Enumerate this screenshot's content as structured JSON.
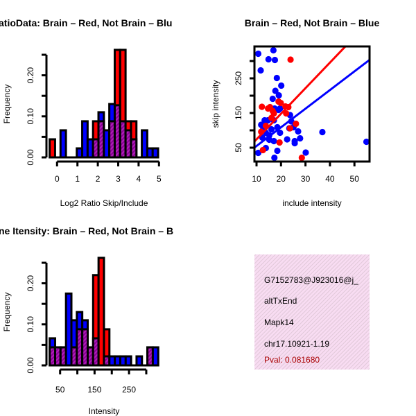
{
  "colors": {
    "red": "#ff0000",
    "blue": "#0000ff",
    "purple": "#9a00a8",
    "info_bg": "#f6d8f0",
    "pval": "#aa0000"
  },
  "chart_data": [
    {
      "type": "bar",
      "id": "ratio-hist",
      "title": "atioData: Brain – Red, Not Brain – Blu",
      "xlabel": "Log2 Ratio Skip/Include",
      "ylabel": "Frequency",
      "xticks": [
        0,
        1,
        2,
        3,
        4,
        5
      ],
      "xtick_labels": [
        "0",
        "1",
        "2",
        "3",
        "4",
        "5"
      ],
      "yticks": [
        0,
        0.05,
        0.1,
        0.15,
        0.2,
        0.25
      ],
      "ytick_labels": [
        "0.00",
        "",
        "0.10",
        "",
        "0.20",
        ""
      ],
      "bin_start": -0.363,
      "bin_width": 0.266,
      "series": [
        {
          "name": "Brain",
          "color": "red",
          "values": [
            0.044,
            0,
            0,
            0,
            0,
            0,
            0,
            0,
            0.088,
            0.088,
            0,
            0.088,
            0.262,
            0.262,
            0.088,
            0.088,
            0,
            0,
            0,
            0
          ]
        },
        {
          "name": "Not Brain",
          "color": "blue",
          "values": [
            0,
            0,
            0.066,
            0,
            0,
            0.022,
            0.088,
            0.044,
            0.044,
            0.11,
            0.066,
            0.13,
            0.127,
            0.088,
            0.066,
            0.044,
            0,
            0.066,
            0.022,
            0.022
          ]
        }
      ]
    },
    {
      "type": "scatter",
      "id": "scatter",
      "title": "Brain – Red, Not Brain – Blue",
      "xlabel": "include intensity",
      "ylabel": "skip intensity",
      "xlim": [
        8.9,
        56.2
      ],
      "ylim": [
        10,
        342
      ],
      "xticks": [
        10,
        20,
        30,
        40,
        50
      ],
      "xtick_labels": [
        "10",
        "20",
        "30",
        "40",
        "50"
      ],
      "yticks": [
        50,
        100,
        150,
        200,
        250,
        300
      ],
      "ytick_labels": [
        "50",
        "",
        "150",
        "",
        "250",
        ""
      ],
      "series": [
        {
          "name": "Not Brain",
          "color": "blue",
          "points": [
            [
              10.7,
              321
            ],
            [
              16.9,
              331
            ],
            [
              14.9,
              305
            ],
            [
              17.5,
              303
            ],
            [
              11.7,
              273
            ],
            [
              18.3,
              251
            ],
            [
              20.1,
              229
            ],
            [
              17.7,
              214
            ],
            [
              19.1,
              201
            ],
            [
              16.6,
              191
            ],
            [
              17.4,
              163
            ],
            [
              19.0,
              159
            ],
            [
              19.6,
              163
            ],
            [
              23.7,
              144
            ],
            [
              24.2,
              126
            ],
            [
              25.1,
              109
            ],
            [
              23.4,
              106
            ],
            [
              27.0,
              97
            ],
            [
              27.8,
              77
            ],
            [
              25.6,
              69
            ],
            [
              25.6,
              63
            ],
            [
              22.5,
              74
            ],
            [
              19.6,
              93
            ],
            [
              18.5,
              109
            ],
            [
              17.1,
              129
            ],
            [
              14.7,
              129
            ],
            [
              13.3,
              129
            ],
            [
              11.9,
              116
            ],
            [
              12.8,
              106
            ],
            [
              13.8,
              93
            ],
            [
              12.4,
              79
            ],
            [
              15.2,
              73
            ],
            [
              17.1,
              69
            ],
            [
              13.8,
              49
            ],
            [
              18.5,
              41
            ],
            [
              17.3,
              21
            ],
            [
              10.7,
              35
            ],
            [
              30.1,
              36
            ],
            [
              36.9,
              95
            ],
            [
              54.9,
              67
            ],
            [
              16.1,
              103
            ],
            [
              15.2,
              86
            ]
          ],
          "fit": {
            "intercept": 1.1,
            "slope": 5.38
          }
        },
        {
          "name": "Brain",
          "color": "red",
          "points": [
            [
              23.9,
              304
            ],
            [
              12.2,
              168
            ],
            [
              15.5,
              167
            ],
            [
              14.7,
              163
            ],
            [
              16.6,
              156
            ],
            [
              19.0,
              183
            ],
            [
              19.9,
              179
            ],
            [
              21.8,
              169
            ],
            [
              23.0,
              167
            ],
            [
              22.1,
              149
            ],
            [
              17.1,
              149
            ],
            [
              16.1,
              136
            ],
            [
              26.1,
              119
            ],
            [
              23.7,
              106
            ],
            [
              11.9,
              96
            ],
            [
              19.4,
              65
            ],
            [
              12.6,
              43
            ],
            [
              28.5,
              21
            ],
            [
              13.8,
              113
            ]
          ],
          "fit": {
            "intercept": 0.3,
            "slope": 7.38
          }
        }
      ]
    },
    {
      "type": "bar",
      "id": "intensity-hist",
      "title": "ne Itensity: Brain – Red, Not Brain – B",
      "xlabel": "Intensity",
      "ylabel": "Frequency",
      "xticks": [
        50,
        100,
        150,
        200,
        250,
        300
      ],
      "xtick_labels": [
        "50",
        "",
        "150",
        "",
        "250",
        ""
      ],
      "yticks": [
        0,
        0.05,
        0.1,
        0.15,
        0.2,
        0.25
      ],
      "ytick_labels": [
        "0.00",
        "",
        "0.10",
        "",
        "0.20",
        ""
      ],
      "bin_start": 19.8,
      "bin_width": 15.75,
      "series": [
        {
          "name": "Brain",
          "color": "red",
          "values": [
            0.044,
            0.044,
            0.044,
            0,
            0.044,
            0.088,
            0.088,
            0.044,
            0.22,
            0.262,
            0.088,
            0,
            0,
            0,
            0,
            0,
            0,
            0,
            0.044,
            0
          ]
        },
        {
          "name": "Not Brain",
          "color": "blue",
          "values": [
            0.066,
            0.044,
            0.044,
            0.175,
            0.11,
            0.13,
            0.11,
            0.044,
            0.066,
            0,
            0.022,
            0.022,
            0.022,
            0.022,
            0.022,
            0,
            0.022,
            0,
            0.044,
            0.044
          ]
        }
      ]
    }
  ],
  "info": {
    "lines": [
      "G7152783@J923016@j_",
      "altTxEnd",
      "Mapk14",
      "chr17.10921-1.19"
    ],
    "pval": "Pval: 0.081680"
  }
}
